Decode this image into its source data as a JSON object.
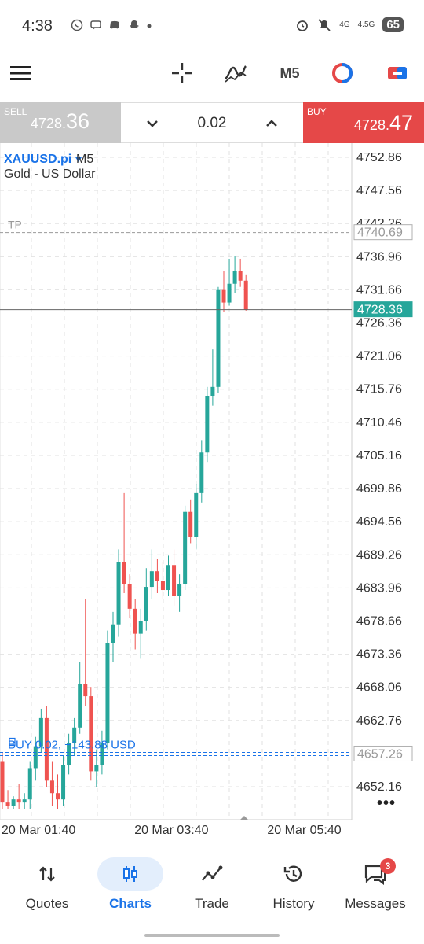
{
  "status_bar": {
    "time": "4:38",
    "left_icons": [
      "whatsapp-icon",
      "chat-icon",
      "discord-icon",
      "snapchat-icon",
      "dot"
    ],
    "network_1": "4G",
    "network_2": "4.5G",
    "battery": "65"
  },
  "toolbar": {
    "menu_icon": "hamburger-menu-icon",
    "crosshair_icon": "crosshair-icon",
    "indicators_icon": "indicators-icon",
    "timeframe": "M5",
    "objects_icon": "objects-icon",
    "trade_icon": "one-click-trade-icon"
  },
  "trade": {
    "sell_label": "SELL",
    "sell_price_prefix": "4728.",
    "sell_price_suffix": "36",
    "lot": "0.02",
    "buy_label": "BUY",
    "buy_price_prefix": "4728.",
    "buy_price_suffix": "47",
    "colors": {
      "sell_bg": "#c9c9c9",
      "buy_bg": "#e54848"
    }
  },
  "chart": {
    "symbol": "XAUUSD.pi",
    "symbol_dropdown_icon": "triangle-down-icon",
    "timeframe": "M5",
    "description": "Gold - US Dollar",
    "more_icon": "more-dots-icon"
  },
  "chart_data": {
    "type": "candlestick",
    "ylim": [
      4648.5,
      4755.0
    ],
    "y_ticks": [
      "4752.86",
      "4747.56",
      "4742.26",
      "4736.96",
      "4731.66",
      "4726.36",
      "4721.06",
      "4715.76",
      "4710.46",
      "4705.16",
      "4699.86",
      "4694.56",
      "4689.26",
      "4683.96",
      "4678.66",
      "4673.36",
      "4668.06",
      "4662.76",
      "4652.16"
    ],
    "x_ticks": [
      "20 Mar 01:40",
      "20 Mar 03:40",
      "20 Mar 05:40"
    ],
    "x_tick_index": [
      0,
      24,
      48
    ],
    "current_price": "4728.36",
    "current_price_value": 4728.36,
    "tp_label": "TP",
    "tp_price": "4740.69",
    "tp_value": 4740.69,
    "position_label": "BUY 0.02, +143.88 USD",
    "position_price": "4657.26",
    "position_value": 4657.26,
    "colors": {
      "up": "#26a69a",
      "down": "#ef5350",
      "position": "#1a73e8",
      "tp": "#999999"
    },
    "candles": [
      [
        4656.0,
        4657.5,
        4648.5,
        4649.5
      ],
      [
        4649.5,
        4651.5,
        4648.5,
        4649.0
      ],
      [
        4649.0,
        4650.5,
        4648.5,
        4650.0
      ],
      [
        4650.0,
        4652.5,
        4648.5,
        4649.5
      ],
      [
        4649.5,
        4651.0,
        4648.5,
        4650.0
      ],
      [
        4650.0,
        4656.0,
        4648.5,
        4655.0
      ],
      [
        4655.0,
        4660.0,
        4653.0,
        4658.5
      ],
      [
        4658.5,
        4664.5,
        4657.5,
        4663.0
      ],
      [
        4663.0,
        4665.0,
        4652.0,
        4653.0
      ],
      [
        4653.0,
        4656.0,
        4649.0,
        4651.0
      ],
      [
        4651.0,
        4654.0,
        4648.5,
        4650.0
      ],
      [
        4650.0,
        4657.0,
        4649.0,
        4655.5
      ],
      [
        4655.5,
        4660.5,
        4654.0,
        4659.0
      ],
      [
        4659.0,
        4663.0,
        4657.0,
        4661.5
      ],
      [
        4661.5,
        4672.0,
        4660.5,
        4668.5
      ],
      [
        4668.5,
        4682.0,
        4665.0,
        4666.5
      ],
      [
        4666.5,
        4668.0,
        4653.0,
        4654.5
      ],
      [
        4654.5,
        4658.0,
        4652.0,
        4655.5
      ],
      [
        4655.5,
        4661.0,
        4654.0,
        4659.0
      ],
      [
        4659.0,
        4677.0,
        4658.0,
        4675.0
      ],
      [
        4675.0,
        4680.0,
        4672.0,
        4678.0
      ],
      [
        4678.0,
        4690.0,
        4676.0,
        4688.0
      ],
      [
        4688.0,
        4699.0,
        4683.0,
        4684.5
      ],
      [
        4684.5,
        4686.0,
        4679.0,
        4680.5
      ],
      [
        4680.5,
        4682.0,
        4674.0,
        4676.5
      ],
      [
        4676.5,
        4680.5,
        4672.5,
        4678.5
      ],
      [
        4678.5,
        4687.0,
        4677.0,
        4684.0
      ],
      [
        4684.0,
        4690.0,
        4682.0,
        4686.5
      ],
      [
        4686.5,
        4688.5,
        4683.0,
        4685.0
      ],
      [
        4685.0,
        4688.0,
        4682.0,
        4683.5
      ],
      [
        4683.5,
        4689.0,
        4682.5,
        4687.5
      ],
      [
        4687.5,
        4690.0,
        4681.0,
        4682.5
      ],
      [
        4682.5,
        4686.0,
        4680.0,
        4684.5
      ],
      [
        4684.5,
        4697.0,
        4683.5,
        4696.0
      ],
      [
        4696.0,
        4698.0,
        4691.0,
        4692.0
      ],
      [
        4692.0,
        4700.5,
        4690.0,
        4699.0
      ],
      [
        4699.0,
        4707.5,
        4697.5,
        4705.5
      ],
      [
        4705.5,
        4716.0,
        4704.0,
        4714.5
      ],
      [
        4714.5,
        4722.0,
        4713.0,
        4716.0
      ],
      [
        4716.0,
        4732.0,
        4715.0,
        4731.5
      ],
      [
        4731.5,
        4734.5,
        4728.0,
        4729.5
      ],
      [
        4729.5,
        4736.5,
        4729.0,
        4732.5
      ],
      [
        4732.5,
        4737.0,
        4731.0,
        4734.5
      ],
      [
        4734.5,
        4736.5,
        4732.0,
        4733.0
      ],
      [
        4733.0,
        4734.0,
        4728.2,
        4728.36
      ]
    ]
  },
  "bottom_nav": {
    "items": [
      {
        "label": "Quotes",
        "icon": "quotes-icon"
      },
      {
        "label": "Charts",
        "icon": "charts-icon",
        "active": true
      },
      {
        "label": "Trade",
        "icon": "trade-icon"
      },
      {
        "label": "History",
        "icon": "history-icon"
      },
      {
        "label": "Messages",
        "icon": "messages-icon",
        "badge": "3"
      }
    ]
  }
}
